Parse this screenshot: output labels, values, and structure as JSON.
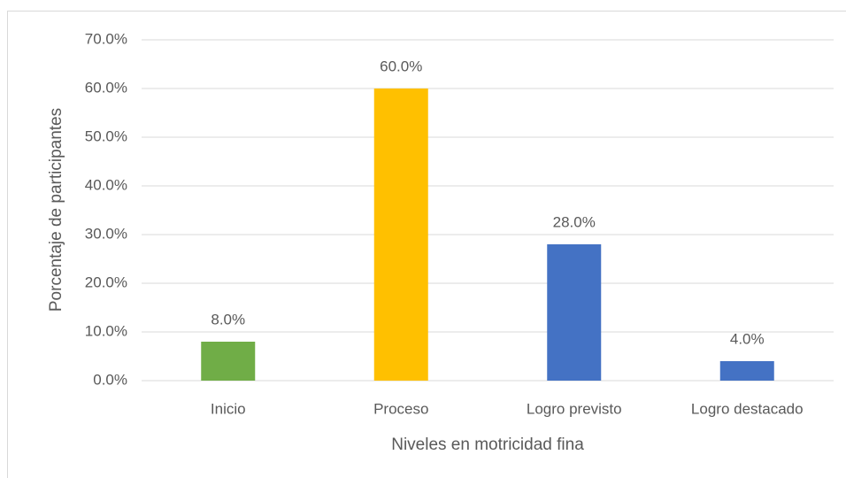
{
  "chart_data": {
    "type": "bar",
    "x_label": "Niveles en motricidad fina",
    "y_label": "Porcentaje de participantes",
    "categories": [
      "Inicio",
      "Proceso",
      "Logro previsto",
      "Logro destacado"
    ],
    "values": [
      8.0,
      60.0,
      28.0,
      4.0
    ],
    "value_labels": [
      "8.0%",
      "60.0%",
      "28.0%",
      "4.0%"
    ],
    "colors": [
      "#70ad47",
      "#ffc000",
      "#4472c4",
      "#4472c4"
    ],
    "ylim": [
      0,
      70
    ],
    "yticks": [
      {
        "value": 0,
        "label": "0.0%"
      },
      {
        "value": 10,
        "label": "10.0%"
      },
      {
        "value": 20,
        "label": "20.0%"
      },
      {
        "value": 30,
        "label": "30.0%"
      },
      {
        "value": 40,
        "label": "40.0%"
      },
      {
        "value": 50,
        "label": "50.0%"
      },
      {
        "value": 60,
        "label": "60.0%"
      },
      {
        "value": 70,
        "label": "70.0%"
      }
    ],
    "grid": true
  }
}
